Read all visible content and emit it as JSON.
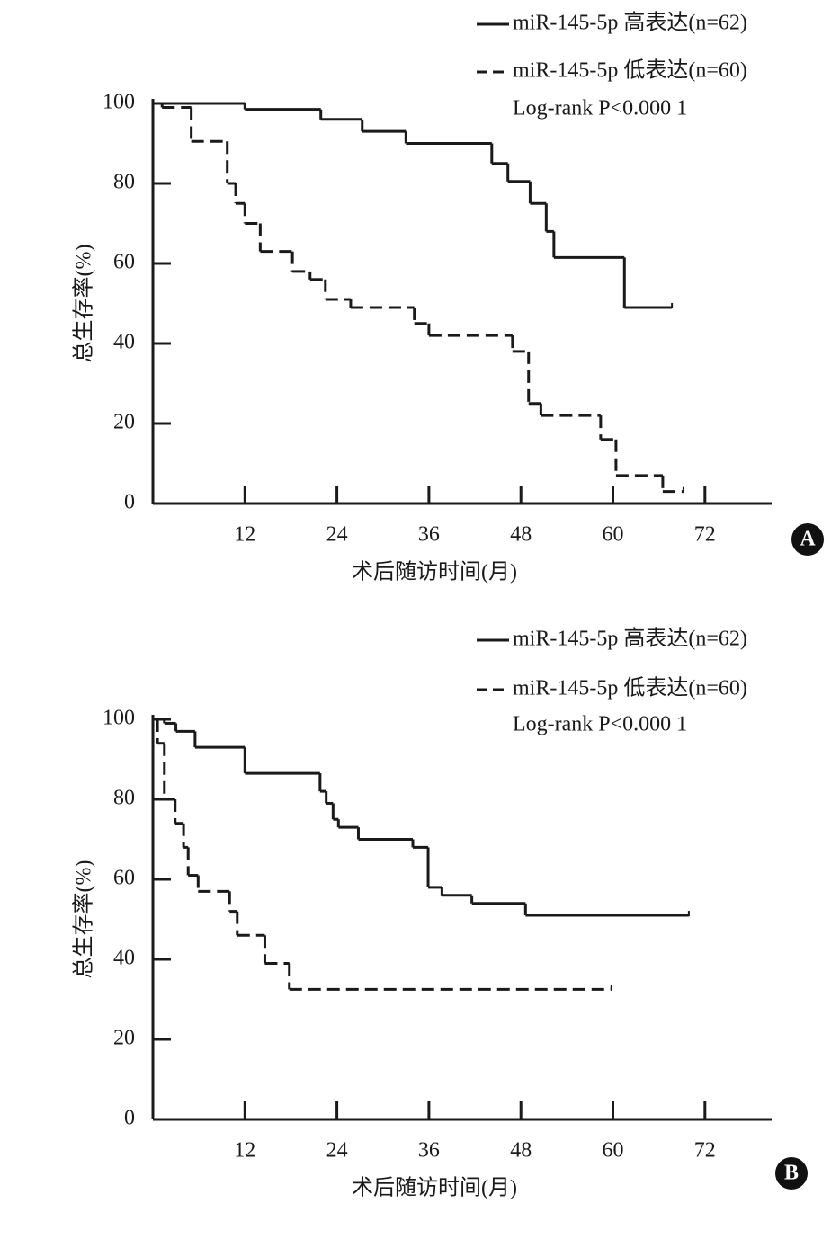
{
  "chart_data": [
    {
      "type": "step",
      "panel_label": "A",
      "xlabel": "术后随访时间(月)",
      "ylabel": "总生存率(%)",
      "annotation": "Log-rank P<0.000 1",
      "xlim": [
        0,
        80
      ],
      "ylim": [
        0,
        100
      ],
      "xticks": [
        12,
        24,
        36,
        48,
        60,
        72
      ],
      "yticks": [
        0,
        20,
        40,
        60,
        80,
        100
      ],
      "series": [
        {
          "name": "miR-145-5p 高表达(n=62)",
          "color": "#1a1a1a",
          "line_style": "solid",
          "x": [
            0,
            12,
            21.9,
            27.3,
            33,
            44.2,
            46.3,
            49.2,
            51.3,
            52.3,
            61.5,
            67.7
          ],
          "values": [
            100,
            98.5,
            96,
            93,
            90,
            85,
            80.5,
            75,
            68,
            61.5,
            49,
            49
          ]
        },
        {
          "name": "miR-145-5p 低表达(n=60)",
          "color": "#1a1a1a",
          "line_style": "dashed",
          "x": [
            0,
            1.2,
            5,
            9.7,
            10.8,
            12,
            14,
            18.2,
            20.5,
            22.5,
            25.8,
            34.1,
            36,
            46.9,
            49,
            50.6,
            58.4,
            60.4,
            66.5,
            69.2
          ],
          "values": [
            100,
            99,
            90.5,
            80,
            75,
            70,
            63,
            58,
            56,
            51,
            49,
            45,
            42,
            38,
            25,
            22,
            16,
            7,
            3,
            3
          ]
        }
      ]
    },
    {
      "type": "step",
      "panel_label": "B",
      "xlabel": "术后随访时间(月)",
      "ylabel": "总生存率(%)",
      "annotation": "Log-rank P<0.000 1",
      "xlim": [
        0,
        80
      ],
      "ylim": [
        0,
        100
      ],
      "xticks": [
        12,
        24,
        36,
        48,
        60,
        72
      ],
      "yticks": [
        0,
        20,
        40,
        60,
        80,
        100
      ],
      "series": [
        {
          "name": "miR-145-5p 高表达(n=62)",
          "color": "#1a1a1a",
          "line_style": "solid",
          "x": [
            0,
            1.5,
            3,
            5.5,
            12,
            21.8,
            22.6,
            23.5,
            24.2,
            26.8,
            33.9,
            35.9,
            37.7,
            41.6,
            48.6,
            69.9
          ],
          "values": [
            100,
            99,
            97,
            93,
            86.5,
            82,
            79,
            75,
            73,
            70,
            68,
            58,
            56,
            54,
            51,
            51
          ]
        },
        {
          "name": "miR-145-5p 低表达(n=60)",
          "color": "#1a1a1a",
          "line_style": "dashed",
          "x": [
            0,
            0.6,
            1.5,
            2.9,
            4,
            4.6,
            5.9,
            10,
            11,
            14.6,
            17.8,
            59.8
          ],
          "values": [
            100,
            94,
            80,
            74,
            68,
            61,
            57,
            52,
            46,
            39,
            32.5,
            32.5
          ]
        }
      ]
    }
  ]
}
